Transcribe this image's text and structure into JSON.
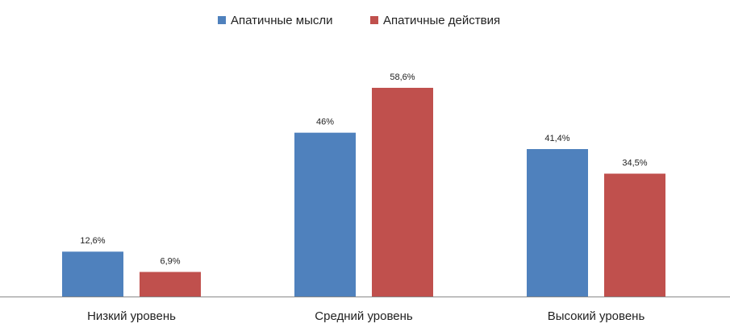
{
  "chart_data": {
    "type": "bar",
    "categories": [
      "Низкий уровень",
      "Средний уровень",
      "Высокий уровень"
    ],
    "series": [
      {
        "name": "Апатичные мысли",
        "color": "#4f81bd",
        "values": [
          12.6,
          46,
          41.4
        ],
        "value_labels": [
          "12,6%",
          "46%",
          "41,4%"
        ]
      },
      {
        "name": "Апатичные действия",
        "color": "#c0504d",
        "values": [
          6.9,
          58.6,
          34.5
        ],
        "value_labels": [
          "6,9%",
          "58,6%",
          "34,5%"
        ]
      }
    ]
  }
}
